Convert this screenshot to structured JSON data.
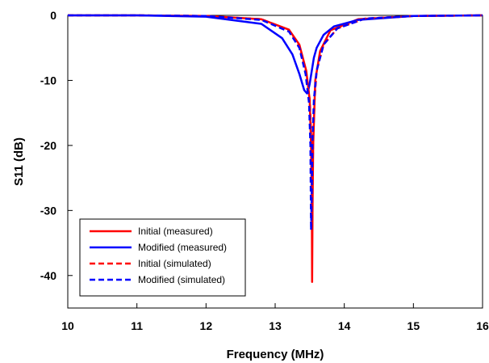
{
  "chart_data": {
    "type": "line",
    "title": "",
    "xlabel": "Frequency (MHz)",
    "ylabel": "S11 (dB)",
    "xlim": [
      10,
      16
    ],
    "ylim": [
      -45,
      0
    ],
    "x_ticks": [
      10,
      11,
      12,
      13,
      14,
      15,
      16
    ],
    "y_ticks": [
      0,
      -10,
      -20,
      -30,
      -40
    ],
    "grid": false,
    "legend_position": "bottom-left",
    "series": [
      {
        "name": "Initial (measured)",
        "color": "#ff0000",
        "dash": "solid",
        "x": [
          10,
          11,
          12,
          12.8,
          13.2,
          13.35,
          13.45,
          13.5,
          13.52,
          13.53,
          13.535,
          13.54,
          13.55,
          13.58,
          13.65,
          13.8,
          14.2,
          15,
          16
        ],
        "y": [
          0,
          0,
          -0.1,
          -0.6,
          -2.2,
          -4.5,
          -8.5,
          -13,
          -20,
          -28,
          -41,
          -30,
          -20,
          -10,
          -5.5,
          -2.3,
          -0.6,
          -0.1,
          0
        ]
      },
      {
        "name": "Modified (measured)",
        "color": "#0000ff",
        "dash": "solid",
        "x": [
          10,
          11,
          12,
          12.8,
          13.1,
          13.25,
          13.35,
          13.42,
          13.46,
          13.48,
          13.5,
          13.53,
          13.56,
          13.6,
          13.7,
          13.85,
          14.2,
          15,
          16
        ],
        "y": [
          0,
          0,
          -0.2,
          -1.3,
          -3.5,
          -6,
          -9,
          -11.5,
          -12,
          -11.5,
          -10.5,
          -8.5,
          -6.5,
          -5,
          -3,
          -1.7,
          -0.7,
          -0.1,
          0
        ]
      },
      {
        "name": "Initial (simulated)",
        "color": "#ff0000",
        "dash": "dashed",
        "x": [
          10,
          11,
          12,
          12.8,
          13.2,
          13.35,
          13.45,
          13.5,
          13.52,
          13.53,
          13.54,
          13.55,
          13.57,
          13.6,
          13.7,
          13.9,
          14.3,
          15,
          16
        ],
        "y": [
          0,
          0,
          -0.1,
          -0.6,
          -2.3,
          -4.8,
          -8.8,
          -13,
          -18,
          -24,
          -26,
          -19,
          -13,
          -8.5,
          -4.5,
          -2,
          -0.5,
          -0.1,
          0
        ]
      },
      {
        "name": "Modified (simulated)",
        "color": "#0000ff",
        "dash": "dashed",
        "x": [
          10,
          11,
          12,
          12.8,
          13.2,
          13.35,
          13.44,
          13.49,
          13.51,
          13.52,
          13.53,
          13.54,
          13.56,
          13.6,
          13.7,
          13.9,
          14.3,
          15,
          16
        ],
        "y": [
          0,
          0,
          -0.1,
          -0.7,
          -2.5,
          -5,
          -9,
          -13.5,
          -20,
          -33,
          -27,
          -19,
          -13,
          -8.5,
          -4.5,
          -2,
          -0.5,
          -0.1,
          0
        ]
      }
    ]
  }
}
